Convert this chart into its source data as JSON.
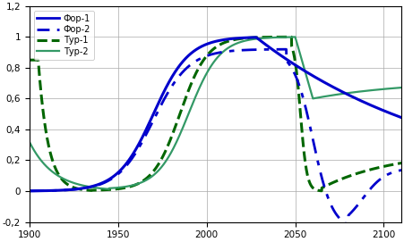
{
  "title": "",
  "xlim": [
    1900,
    2110
  ],
  "ylim": [
    -0.2,
    1.2
  ],
  "xticks": [
    1900,
    1950,
    2000,
    2050,
    2100
  ],
  "yticks": [
    -0.2,
    0,
    0.2,
    0.4,
    0.6,
    0.8,
    1,
    1.2
  ],
  "ytick_labels": [
    "-0,2",
    "0",
    "0,2",
    "0,4",
    "0,6",
    "0,8",
    "1",
    "1,2"
  ],
  "legend_labels": [
    "Фор-1",
    "Фор-2",
    "Тур-1",
    "Тур-2"
  ],
  "colors": {
    "for1": "#0000cc",
    "for2": "#0000cc",
    "tur1": "#006600",
    "tur2": "#339966"
  },
  "background": "#ffffff",
  "grid_color": "#aaaaaa"
}
